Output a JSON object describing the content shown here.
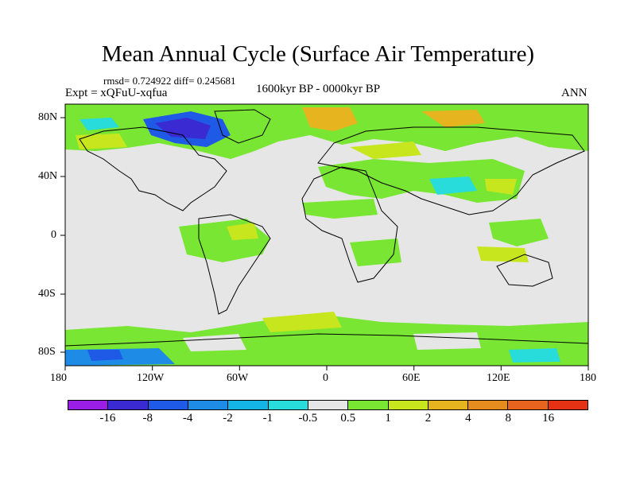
{
  "figure": {
    "title": "Mean Annual Cycle (Surface Air Temperature)",
    "stats": "rmsd= 0.724922 diff= 0.245681",
    "experiment": "Expt = xQFuU-xqfua",
    "period": "1600kyr BP - 0000kyr BP",
    "season": "ANN"
  },
  "axes": {
    "lon_ticks": [
      "180",
      "120W",
      "60W",
      "0",
      "60E",
      "120E",
      "180"
    ],
    "lat_ticks": [
      "80N",
      "40N",
      "0",
      "40S",
      "80S"
    ]
  },
  "colorbar": {
    "labels": [
      "-16",
      "-8",
      "-4",
      "-2",
      "-1",
      "-0.5",
      "0.5",
      "1",
      "2",
      "4",
      "8",
      "16"
    ],
    "colors": [
      "#9a1ee6",
      "#3a2ad2",
      "#1e5ae6",
      "#1e8ce6",
      "#14b4e6",
      "#28dcdc",
      "#e6e6e6",
      "#78e632",
      "#c8e61e",
      "#e6b41e",
      "#e68c1e",
      "#e6641e",
      "#e63214"
    ]
  }
}
